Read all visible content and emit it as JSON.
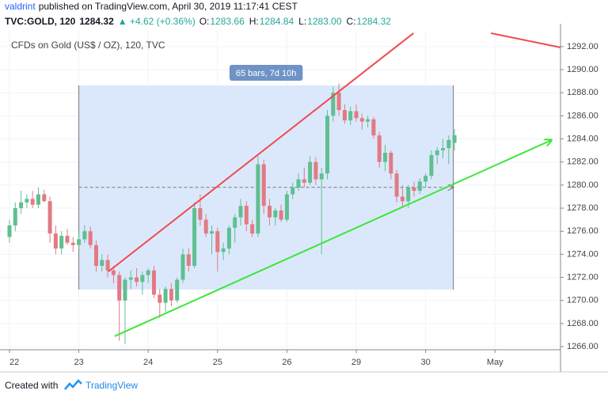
{
  "header": {
    "author": "valdrint",
    "published": "published on TradingView.com, April 30, 2019 11:17:41 CEST",
    "symbol": "TVC:GOLD, 120",
    "last": "1284.32",
    "change": "▲ +4.62 (+0.36%)",
    "ohlc": [
      "O:",
      "1283.66",
      "H:",
      "1284.84",
      "L:",
      "1283.00",
      "C:",
      "1284.32"
    ]
  },
  "footer": {
    "created": "Created with",
    "brand": "TradingView"
  },
  "chart_data": {
    "type": "candlestick",
    "title": "CFDs on Gold (US$ / OZ), 120, TVC",
    "up_color": "#5fbf91",
    "down_color": "#e27a84",
    "grid": true,
    "xlim": [
      -1.64,
      95.34
    ],
    "xticks": [
      {
        "value": 0,
        "label": "22"
      },
      {
        "value": 12,
        "label": "23"
      },
      {
        "value": 24,
        "label": "24"
      },
      {
        "value": 36,
        "label": "25"
      },
      {
        "value": 48,
        "label": "26"
      },
      {
        "value": 60,
        "label": "29"
      },
      {
        "value": 72,
        "label": "30"
      },
      {
        "value": 84,
        "label": "May"
      }
    ],
    "ylim": [
      1265.73,
      1293.43
    ],
    "yticks": [
      {
        "value": 1266,
        "label": "1266.00"
      },
      {
        "value": 1268,
        "label": "1268.00"
      },
      {
        "value": 1270,
        "label": "1270.00"
      },
      {
        "value": 1272,
        "label": "1272.00"
      },
      {
        "value": 1274,
        "label": "1274.00"
      },
      {
        "value": 1276,
        "label": "1276.00"
      },
      {
        "value": 1278,
        "label": "1278.00"
      },
      {
        "value": 1280,
        "label": "1280.00"
      },
      {
        "value": 1282,
        "label": "1282.00"
      },
      {
        "value": 1284,
        "label": "1284.00"
      },
      {
        "value": 1286,
        "label": "1286.00"
      },
      {
        "value": 1288,
        "label": "1288.00"
      },
      {
        "value": 1290,
        "label": "1290.00"
      },
      {
        "value": 1292,
        "label": "1292.00"
      }
    ],
    "candles": [
      [
        1275.5,
        1277,
        1275,
        1276.5
      ],
      [
        1276.5,
        1278.5,
        1276,
        1278
      ],
      [
        1278,
        1279.5,
        1277.5,
        1278.5
      ],
      [
        1278.5,
        1279.2,
        1278,
        1278.8
      ],
      [
        1278.8,
        1279.5,
        1278,
        1278.3
      ],
      [
        1278.3,
        1279.8,
        1278,
        1279.2
      ],
      [
        1279.2,
        1279.6,
        1278.5,
        1278.6
      ],
      [
        1278.6,
        1279,
        1275,
        1275.8
      ],
      [
        1275.8,
        1276.5,
        1274,
        1274.5
      ],
      [
        1274.5,
        1276,
        1274,
        1275.6
      ],
      [
        1275.6,
        1276.2,
        1274.8,
        1275
      ],
      [
        1275,
        1275.5,
        1274.2,
        1274.8
      ],
      [
        1274.8,
        1276,
        1274.5,
        1275.3
      ],
      [
        1275.3,
        1276.5,
        1275,
        1276
      ],
      [
        1276,
        1276.4,
        1274.5,
        1274.8
      ],
      [
        1274.8,
        1275.2,
        1272.5,
        1273
      ],
      [
        1273,
        1274,
        1272.5,
        1273.5
      ],
      [
        1273.5,
        1274,
        1272,
        1272.6
      ],
      [
        1272.6,
        1273,
        1271.5,
        1272.2
      ],
      [
        1272.2,
        1272.5,
        1266.5,
        1270
      ],
      [
        1270,
        1272,
        1266.2,
        1271.8
      ],
      [
        1271.8,
        1272.6,
        1271,
        1272
      ],
      [
        1272,
        1272.8,
        1271.2,
        1271.6
      ],
      [
        1271.6,
        1272.5,
        1270.5,
        1272.2
      ],
      [
        1272.2,
        1272.8,
        1271.5,
        1272.6
      ],
      [
        1272.6,
        1273,
        1270.2,
        1270.5
      ],
      [
        1270.5,
        1271,
        1268.5,
        1269.8
      ],
      [
        1269.8,
        1271.2,
        1269,
        1271
      ],
      [
        1271,
        1271.5,
        1269.5,
        1270
      ],
      [
        1270,
        1272,
        1269.8,
        1271.8
      ],
      [
        1271.8,
        1274.5,
        1271.5,
        1274
      ],
      [
        1274,
        1274.5,
        1272.5,
        1273
      ],
      [
        1273,
        1278.5,
        1272.8,
        1278
      ],
      [
        1278,
        1279.2,
        1276.5,
        1277
      ],
      [
        1277,
        1277.5,
        1275.5,
        1275.8
      ],
      [
        1275.8,
        1276.5,
        1274,
        1276
      ],
      [
        1276,
        1276.3,
        1272.5,
        1274.2
      ],
      [
        1274.2,
        1275,
        1273.5,
        1274.5
      ],
      [
        1274.5,
        1276.5,
        1274,
        1276.3
      ],
      [
        1276.3,
        1277.5,
        1275,
        1277.2
      ],
      [
        1277.2,
        1278.8,
        1276.5,
        1278.2
      ],
      [
        1278.2,
        1278.6,
        1276,
        1276.6
      ],
      [
        1276.6,
        1277,
        1275.5,
        1275.8
      ],
      [
        1275.8,
        1282.5,
        1275.5,
        1281.8
      ],
      [
        1281.8,
        1282.2,
        1277.5,
        1278.2
      ],
      [
        1278.2,
        1278.8,
        1276.5,
        1277.2
      ],
      [
        1277.2,
        1278,
        1276.5,
        1277.8
      ],
      [
        1277.8,
        1278.3,
        1276.8,
        1277
      ],
      [
        1277,
        1279.5,
        1276.8,
        1279.2
      ],
      [
        1279.2,
        1280.2,
        1278.8,
        1279.8
      ],
      [
        1279.8,
        1281,
        1279.5,
        1280.5
      ],
      [
        1280.5,
        1281.5,
        1279.8,
        1280.2
      ],
      [
        1280.2,
        1282.5,
        1280,
        1282
      ],
      [
        1282,
        1282.4,
        1280,
        1280.5
      ],
      [
        1280.5,
        1281.5,
        1274,
        1281
      ],
      [
        1281,
        1286.5,
        1280.5,
        1286
      ],
      [
        1286,
        1288.5,
        1285.5,
        1288
      ],
      [
        1288,
        1288.8,
        1286,
        1286.5
      ],
      [
        1286.5,
        1287,
        1285.3,
        1285.6
      ],
      [
        1285.6,
        1286.8,
        1285.2,
        1286.4
      ],
      [
        1286.4,
        1287,
        1285.5,
        1285.8
      ],
      [
        1285.8,
        1286.2,
        1284.8,
        1285.5
      ],
      [
        1285.5,
        1286,
        1285,
        1285.7
      ],
      [
        1285.7,
        1285.9,
        1284,
        1284.3
      ],
      [
        1284.3,
        1284.6,
        1281.5,
        1282
      ],
      [
        1282,
        1283.5,
        1281.2,
        1282.8
      ],
      [
        1282.8,
        1283,
        1280.5,
        1281
      ],
      [
        1281,
        1281.3,
        1278.5,
        1279
      ],
      [
        1279,
        1280,
        1278,
        1278.6
      ],
      [
        1278.6,
        1280,
        1278,
        1279.8
      ],
      [
        1279.8,
        1280.3,
        1279,
        1279.5
      ],
      [
        1279.5,
        1280.6,
        1279.2,
        1280.3
      ],
      [
        1280.3,
        1281,
        1279.8,
        1280.8
      ],
      [
        1280.8,
        1283,
        1280.5,
        1282.6
      ],
      [
        1282.6,
        1283.3,
        1281.8,
        1283
      ],
      [
        1283,
        1284,
        1282.3,
        1283.2
      ],
      [
        1283.2,
        1284.3,
        1281.8,
        1283.9
      ],
      [
        1283.66,
        1284.84,
        1283,
        1284.32
      ]
    ],
    "range": {
      "label": "65 bars, 7d 10h",
      "points": [
        [
          12,
          1288.63
        ],
        [
          76.8,
          1270.94
        ]
      ],
      "mid": 1279.8,
      "color": "#dbe8fb"
    },
    "trendlines": [
      {
        "color": "#f2484e",
        "points": [
          [
            17.1,
            1272.5
          ],
          [
            69.9,
            1293.16
          ]
        ]
      },
      {
        "color": "#f2484e",
        "points": [
          [
            83.3,
            1293.16
          ],
          [
            95.3,
            1291.93
          ]
        ]
      },
      {
        "color": "#3ee63b",
        "points": [
          [
            18.2,
            1266.9
          ],
          [
            93.8,
            1283.9
          ]
        ],
        "arrow": true
      }
    ]
  }
}
